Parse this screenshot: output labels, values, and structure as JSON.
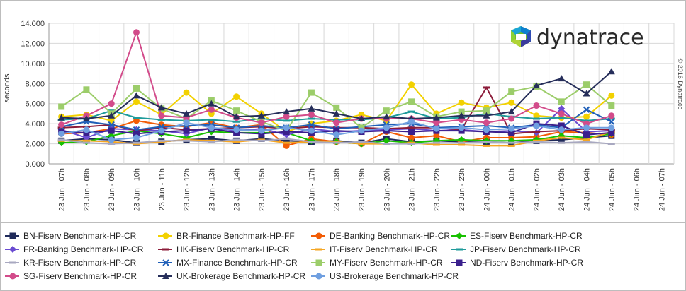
{
  "brand": {
    "name": "dynatrace",
    "copyright": "© 2016 Dynatrace"
  },
  "chart_data": {
    "type": "line",
    "ylabel": "seconds",
    "ylim": [
      0,
      14
    ],
    "yticks": [
      "0.000",
      "2.000",
      "4.000",
      "6.000",
      "8.000",
      "10.000",
      "12.000",
      "14.000"
    ],
    "grid": true,
    "legend_position": "bottom",
    "categories": [
      "23 Jun - 07h",
      "23 Jun - 08h",
      "23 Jun - 09h",
      "23 Jun - 10h",
      "23 Jun - 11h",
      "23 Jun - 12h",
      "23 Jun - 13h",
      "23 Jun - 14h",
      "23 Jun - 15h",
      "23 Jun - 16h",
      "23 Jun - 17h",
      "23 Jun - 18h",
      "23 Jun - 19h",
      "23 Jun - 20h",
      "23 Jun - 21h",
      "23 Jun - 22h",
      "23 Jun - 23h",
      "24 Jun - 00h",
      "24 Jun - 01h",
      "24 Jun - 02h",
      "24 Jun - 03h",
      "24 Jun - 04h",
      "24 Jun - 05h",
      "24 Jun - 06h",
      "24 Jun - 07h"
    ],
    "series": [
      {
        "name": "BN-Fiserv Benchmark-HP-CR",
        "color": "#1f2a5a",
        "marker": "square",
        "values": [
          2.3,
          2.5,
          2.4,
          2.1,
          2.2,
          2.4,
          2.5,
          2.3,
          2.5,
          2.3,
          2.2,
          2.3,
          2.1,
          2.5,
          2.2,
          2.3,
          2.2,
          2.2,
          2.1,
          2.3,
          2.4,
          2.6,
          2.8,
          null,
          null
        ]
      },
      {
        "name": "BR-Finance Benchmark-HP-FF",
        "color": "#f2d100",
        "marker": "circle",
        "values": [
          4.7,
          4.9,
          4.3,
          6.2,
          4.9,
          7.1,
          5.0,
          6.7,
          5.0,
          3.2,
          4.0,
          4.3,
          4.9,
          4.3,
          7.9,
          5.0,
          6.1,
          5.6,
          6.1,
          4.8,
          4.6,
          4.7,
          6.8,
          null,
          null
        ]
      },
      {
        "name": "DE-Banking Benchmark-HP-CR",
        "color": "#f25c05",
        "marker": "circle",
        "values": [
          3.0,
          3.1,
          3.5,
          4.3,
          3.9,
          3.7,
          4.1,
          3.6,
          3.9,
          1.8,
          2.5,
          2.2,
          2.0,
          3.2,
          2.6,
          2.8,
          2.2,
          2.6,
          2.6,
          2.7,
          3.2,
          3.1,
          2.9,
          null,
          null
        ]
      },
      {
        "name": "ES-Fiserv Benchmark-HP-CR",
        "color": "#18c100",
        "marker": "diamond",
        "values": [
          2.1,
          2.2,
          2.8,
          3.3,
          3.0,
          2.6,
          3.2,
          3.1,
          3.1,
          3.1,
          2.3,
          2.2,
          2.0,
          2.3,
          2.1,
          2.3,
          2.4,
          2.3,
          2.3,
          2.4,
          2.8,
          2.6,
          3.0,
          null,
          null
        ]
      },
      {
        "name": "FR-Banking Benchmark-HP-CR",
        "color": "#6a4bd1",
        "marker": "diamond",
        "values": [
          3.4,
          2.6,
          3.5,
          3.4,
          3.3,
          3.0,
          3.6,
          3.3,
          3.5,
          2.9,
          3.5,
          3.2,
          3.3,
          3.4,
          3.5,
          3.3,
          3.4,
          3.2,
          3.3,
          3.1,
          5.5,
          3.2,
          3.3,
          null,
          null
        ]
      },
      {
        "name": "HK-Fiserv Benchmark-HP-CR",
        "color": "#8c1c3a",
        "marker": "dash",
        "values": [
          3.6,
          3.7,
          3.9,
          3.3,
          3.6,
          3.4,
          3.5,
          3.6,
          3.7,
          3.5,
          3.7,
          3.6,
          3.6,
          3.5,
          3.6,
          3.6,
          3.4,
          7.6,
          3.0,
          3.2,
          3.3,
          3.5,
          3.4,
          null,
          null
        ]
      },
      {
        "name": "IT-Fiserv Benchmark-HP-CR",
        "color": "#f5a623",
        "marker": "dash",
        "values": [
          2.3,
          2.3,
          2.2,
          2.0,
          2.2,
          2.4,
          2.3,
          2.2,
          2.4,
          2.1,
          2.2,
          2.2,
          2.0,
          2.0,
          2.1,
          1.9,
          1.9,
          1.8,
          1.8,
          2.3,
          2.6,
          2.4,
          3.2,
          null,
          null
        ]
      },
      {
        "name": "JP-Fiserv Benchmark-HP-CR",
        "color": "#1f9b9b",
        "marker": "dash",
        "values": [
          4.4,
          4.5,
          5.3,
          4.6,
          4.4,
          4.3,
          4.4,
          4.2,
          4.5,
          4.3,
          4.5,
          4.4,
          4.4,
          4.6,
          5.2,
          4.5,
          4.6,
          5.0,
          4.7,
          4.5,
          4.6,
          4.3,
          4.5,
          null,
          null
        ]
      },
      {
        "name": "KR-Fiserv Benchmark-HP-CR",
        "color": "#a8a8c0",
        "marker": "dash",
        "values": [
          2.4,
          2.1,
          2.0,
          2.1,
          2.3,
          2.3,
          2.2,
          2.4,
          2.3,
          2.5,
          2.2,
          2.1,
          2.2,
          2.0,
          2.0,
          2.1,
          2.1,
          2.2,
          2.1,
          2.2,
          2.1,
          2.2,
          2.0,
          null,
          null
        ]
      },
      {
        "name": "MX-Finance Benchmark-HP-CR",
        "color": "#1f5fb8",
        "marker": "x",
        "values": [
          3.7,
          4.2,
          3.9,
          3.4,
          3.7,
          3.8,
          3.9,
          3.6,
          3.8,
          3.6,
          3.9,
          3.5,
          3.7,
          3.9,
          4.0,
          3.6,
          3.7,
          3.8,
          3.6,
          3.9,
          3.6,
          5.4,
          4.2,
          null,
          null
        ]
      },
      {
        "name": "MY-Fiserv Benchmark-HP-CR",
        "color": "#9ccd6a",
        "marker": "square",
        "values": [
          5.7,
          7.4,
          5.0,
          7.5,
          5.5,
          4.5,
          6.3,
          5.3,
          4.2,
          3.3,
          7.1,
          5.6,
          3.6,
          5.3,
          6.2,
          4.7,
          5.2,
          5.3,
          7.2,
          7.7,
          6.2,
          7.9,
          5.8,
          null,
          null
        ]
      },
      {
        "name": "ND-Fiserv Benchmark-HP-CR",
        "color": "#3a1f8c",
        "marker": "square",
        "values": [
          3.2,
          3.1,
          3.3,
          3.0,
          3.2,
          3.3,
          3.5,
          3.1,
          3.0,
          3.2,
          3.1,
          3.3,
          3.2,
          3.3,
          3.2,
          3.3,
          3.3,
          3.2,
          3.1,
          4.0,
          3.8,
          2.9,
          3.1,
          null,
          null
        ]
      },
      {
        "name": "SG-Fiserv Benchmark-HP-CR",
        "color": "#d24b8a",
        "marker": "circle",
        "values": [
          3.9,
          4.8,
          6.0,
          13.1,
          4.8,
          4.6,
          5.4,
          4.6,
          4.1,
          4.7,
          4.9,
          4.1,
          4.5,
          4.5,
          4.5,
          4.1,
          4.4,
          4.1,
          4.5,
          5.8,
          5.0,
          4.0,
          4.8,
          null,
          null
        ]
      },
      {
        "name": "UK-Brokerage Benchmark-HP-CR",
        "color": "#262e5a",
        "marker": "triangle",
        "values": [
          4.6,
          4.5,
          4.8,
          6.8,
          5.6,
          5.0,
          6.0,
          4.7,
          4.8,
          5.2,
          5.5,
          5.0,
          4.5,
          4.7,
          4.5,
          4.6,
          4.8,
          4.8,
          5.2,
          7.8,
          8.5,
          7.0,
          9.2,
          null,
          null
        ]
      },
      {
        "name": "US-Brokerage Benchmark-HP-CR",
        "color": "#6f9fe0",
        "marker": "circle",
        "values": [
          3.0,
          3.4,
          2.4,
          2.6,
          3.3,
          4.1,
          3.6,
          3.4,
          3.3,
          3.6,
          3.3,
          2.9,
          3.3,
          3.6,
          4.2,
          3.5,
          3.6,
          3.4,
          3.5,
          3.8,
          3.4,
          3.6,
          3.6,
          null,
          null
        ]
      }
    ]
  }
}
